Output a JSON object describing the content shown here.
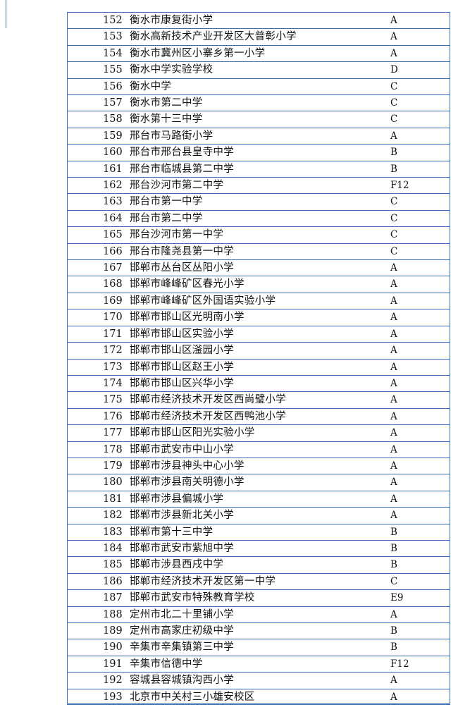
{
  "table": {
    "rows": [
      [
        "152",
        "衡水市康复街小学",
        "A"
      ],
      [
        "153",
        "衡水高新技术产业开发区大普彰小学",
        "A"
      ],
      [
        "154",
        "衡水市冀州区小寨乡第一小学",
        "A"
      ],
      [
        "155",
        "衡水中学实验学校",
        "D"
      ],
      [
        "156",
        "衡水中学",
        "C"
      ],
      [
        "157",
        "衡水市第二中学",
        "C"
      ],
      [
        "158",
        "衡水第十三中学",
        "C"
      ],
      [
        "159",
        "邢台市马路街小学",
        "A"
      ],
      [
        "160",
        "邢台市邢台县皇寺中学",
        "B"
      ],
      [
        "161",
        "邢台市临城县第二中学",
        "B"
      ],
      [
        "162",
        "邢台沙河市第二中学",
        "F12"
      ],
      [
        "163",
        "邢台市第一中学",
        "C"
      ],
      [
        "164",
        "邢台市第二中学",
        "C"
      ],
      [
        "165",
        "邢台沙河市第一中学",
        "C"
      ],
      [
        "166",
        "邢台市隆尧县第一中学",
        "C"
      ],
      [
        "167",
        "邯郸市丛台区丛阳小学",
        "A"
      ],
      [
        "168",
        "邯郸市峰峰矿区春光小学",
        "A"
      ],
      [
        "169",
        "邯郸市峰峰矿区外国语实验小学",
        "A"
      ],
      [
        "170",
        "邯郸市邯山区光明南小学",
        "A"
      ],
      [
        "171",
        "邯郸市邯山区实验小学",
        "A"
      ],
      [
        "172",
        "邯郸市邯山区滏园小学",
        "A"
      ],
      [
        "173",
        "邯郸市邯山区赵王小学",
        "A"
      ],
      [
        "174",
        "邯郸市邯山区兴华小学",
        "A"
      ],
      [
        "175",
        "邯郸市经济技术开发区西尚璧小学",
        "A"
      ],
      [
        "176",
        "邯郸市经济技术开发区西鸭池小学",
        "A"
      ],
      [
        "177",
        "邯郸市邯山区阳光实验小学",
        "A"
      ],
      [
        "178",
        "邯郸市武安市中山小学",
        "A"
      ],
      [
        "179",
        "邯郸市涉县神头中心小学",
        "A"
      ],
      [
        "180",
        "邯郸市涉县南关明德小学",
        "A"
      ],
      [
        "181",
        "邯郸市涉县偏城小学",
        "A"
      ],
      [
        "182",
        "邯郸市涉县新北关小学",
        "A"
      ],
      [
        "183",
        "邯郸市第十三中学",
        "B"
      ],
      [
        "184",
        "邯郸市武安市紫旭中学",
        "B"
      ],
      [
        "185",
        "邯郸市涉县西戌中学",
        "B"
      ],
      [
        "186",
        "邯郸市经济技术开发区第一中学",
        "C"
      ],
      [
        "187",
        "邯郸市武安市特殊教育学校",
        "E9"
      ],
      [
        "188",
        "定州市北二十里铺小学",
        "A"
      ],
      [
        "189",
        "定州市高家庄初级中学",
        "B"
      ],
      [
        "190",
        "辛集市辛集镇第三中学",
        "B"
      ],
      [
        "191",
        "辛集市信德中学",
        "F12"
      ],
      [
        "192",
        "容城县容城镇沟西小学",
        "A"
      ],
      [
        "193",
        "北京市中关村三小雄安校区",
        "A"
      ]
    ]
  }
}
